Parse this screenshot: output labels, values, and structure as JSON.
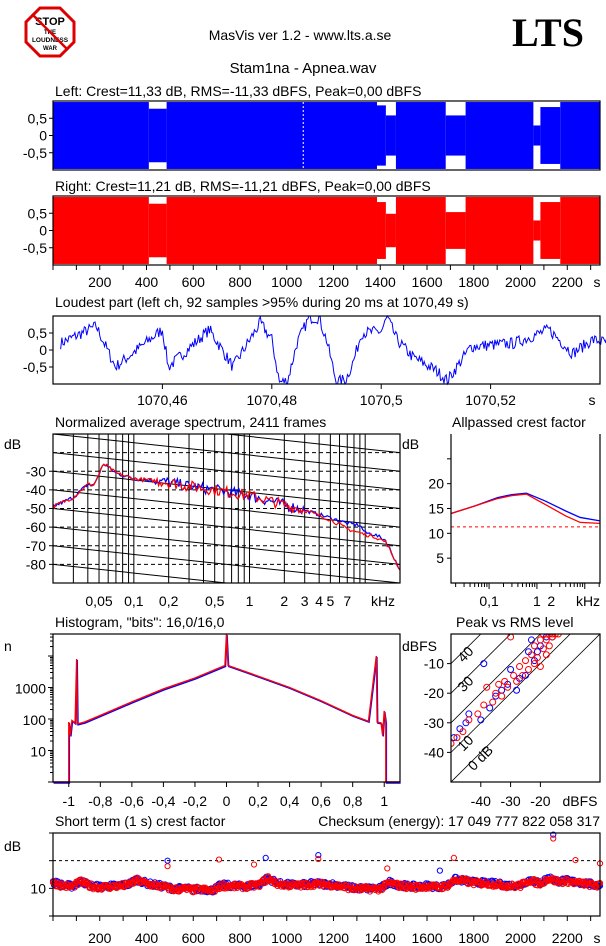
{
  "header": {
    "logo_text": [
      "STOP",
      "THE",
      "LOUDNESS",
      "WAR"
    ],
    "app_title": "MasVis ver 1.2 - www.lts.a.se",
    "brand": "LTS",
    "file_title": "Stam1na - Apnea.wav"
  },
  "colors": {
    "left": "#0000ff",
    "right": "#ff0000",
    "background": "#ffffff"
  },
  "waveform": {
    "left_title": "Left: Crest=11,33 dB, RMS=-11,33 dBFS, Peak=0,00 dBFS",
    "right_title": "Right: Crest=11,21 dB, RMS=-11,21 dBFS, Peak=0,00 dBFS",
    "y_ticks": [
      {
        "v": 0.5,
        "label": "0,5"
      },
      {
        "v": 0,
        "label": "0"
      },
      {
        "v": -0.5,
        "label": "-0,5"
      }
    ],
    "x_ticks": [
      {
        "v": 200,
        "label": "200"
      },
      {
        "v": 400,
        "label": "400"
      },
      {
        "v": 600,
        "label": "600"
      },
      {
        "v": 800,
        "label": "800"
      },
      {
        "v": 1000,
        "label": "1000"
      },
      {
        "v": 1200,
        "label": "1200"
      },
      {
        "v": 1400,
        "label": "1400"
      },
      {
        "v": 1600,
        "label": "1600"
      },
      {
        "v": 1800,
        "label": "1800"
      },
      {
        "v": 2000,
        "label": "2000"
      },
      {
        "v": 2200,
        "label": "2200"
      }
    ],
    "x_unit": "s",
    "xlim": [
      0,
      2340
    ],
    "loudest_marker_s": 1070.49,
    "left_envelope": [
      [
        0,
        410,
        1
      ],
      [
        410,
        486,
        0.8
      ],
      [
        486,
        1386,
        1
      ],
      [
        1386,
        1424,
        0.9
      ],
      [
        1424,
        1467,
        0.6
      ],
      [
        1467,
        1680,
        1
      ],
      [
        1680,
        1765,
        0.6
      ],
      [
        1765,
        2055,
        1
      ],
      [
        2055,
        2085,
        0.3
      ],
      [
        2085,
        2170,
        0.85
      ],
      [
        2170,
        2340,
        1
      ]
    ],
    "right_envelope": [
      [
        0,
        410,
        1
      ],
      [
        410,
        486,
        0.8
      ],
      [
        486,
        1386,
        1
      ],
      [
        1386,
        1424,
        0.85
      ],
      [
        1424,
        1467,
        0.5
      ],
      [
        1467,
        1680,
        1
      ],
      [
        1680,
        1765,
        0.55
      ],
      [
        1765,
        2055,
        1
      ],
      [
        2055,
        2085,
        0.3
      ],
      [
        2085,
        2170,
        0.85
      ],
      [
        2170,
        2340,
        1
      ]
    ]
  },
  "loudest": {
    "title": "Loudest part (left  ch, 92 samples >95% during 20 ms at 1070,49 s)",
    "xlim": [
      1070.44,
      1070.54
    ],
    "x_ticks": [
      {
        "v": 1070.46,
        "label": "1070,46"
      },
      {
        "v": 1070.48,
        "label": "1070,48"
      },
      {
        "v": 1070.5,
        "label": "1070,5"
      },
      {
        "v": 1070.52,
        "label": "1070,52"
      }
    ],
    "x_unit": "s",
    "points": [
      [
        1070.4414,
        0.2
      ],
      [
        1070.4479,
        0.7
      ],
      [
        1070.4514,
        -0.5
      ],
      [
        1070.46,
        0.6
      ],
      [
        1070.4611,
        -0.5
      ],
      [
        1070.4686,
        0.6
      ],
      [
        1070.4729,
        -0.5
      ],
      [
        1070.4779,
        0.8
      ],
      [
        1070.48,
        0.3
      ],
      [
        1070.4814,
        -0.95
      ],
      [
        1070.4829,
        -0.9
      ],
      [
        1070.4846,
        0.2
      ],
      [
        1070.4868,
        0.95
      ],
      [
        1070.4886,
        0.95
      ],
      [
        1070.49,
        0.3
      ],
      [
        1070.4918,
        -0.95
      ],
      [
        1070.4936,
        -0.85
      ],
      [
        1070.495,
        -0.3
      ],
      [
        1070.4964,
        0.5
      ],
      [
        1070.5,
        0.55
      ],
      [
        1070.5011,
        0.95
      ],
      [
        1070.5029,
        0.3
      ],
      [
        1070.5057,
        -0.2
      ],
      [
        1070.51,
        -0.6
      ],
      [
        1070.5121,
        -0.9
      ],
      [
        1070.5164,
        0.1
      ],
      [
        1070.5243,
        0.2
      ],
      [
        1070.5307,
        0.6
      ],
      [
        1070.535,
        -0.1
      ],
      [
        1070.5386,
        0.3
      ],
      [
        1070.5421,
        0.2
      ]
    ]
  },
  "spectrum": {
    "title": "Normalized average spectrum, 2411 frames",
    "y_unit": "dB",
    "ylim": [
      -90,
      -10
    ],
    "xlim_khz": [
      0.02,
      20
    ],
    "y_ticks": [
      {
        "v": -30,
        "label": "-30"
      },
      {
        "v": -40,
        "label": "-40"
      },
      {
        "v": -50,
        "label": "-50"
      },
      {
        "v": -60,
        "label": "-60"
      },
      {
        "v": -70,
        "label": "-70"
      },
      {
        "v": -80,
        "label": "-80"
      }
    ],
    "x_ticks": [
      {
        "v": 0.05,
        "label": "0,05"
      },
      {
        "v": 0.1,
        "label": "0,1"
      },
      {
        "v": 0.2,
        "label": "0,2"
      },
      {
        "v": 0.5,
        "label": "0,5"
      },
      {
        "v": 1,
        "label": "1"
      },
      {
        "v": 2,
        "label": "2"
      },
      {
        "v": 3,
        "label": "3"
      },
      {
        "v": 4,
        "label": "4"
      },
      {
        "v": 5,
        "label": "5"
      },
      {
        "v": 7,
        "label": "7"
      }
    ],
    "x_unit": "kHz",
    "left": [
      [
        0.02,
        -49
      ],
      [
        0.03,
        -44
      ],
      [
        0.04,
        -37
      ],
      [
        0.045,
        -37.5
      ],
      [
        0.055,
        -26
      ],
      [
        0.07,
        -31
      ],
      [
        0.1,
        -34
      ],
      [
        0.15,
        -35
      ],
      [
        0.2,
        -36
      ],
      [
        0.3,
        -38
      ],
      [
        0.5,
        -40
      ],
      [
        1,
        -43
      ],
      [
        2,
        -48
      ],
      [
        3,
        -51
      ],
      [
        5,
        -55
      ],
      [
        7,
        -58
      ],
      [
        9,
        -59
      ],
      [
        10,
        -63
      ],
      [
        12,
        -64
      ],
      [
        15,
        -67
      ],
      [
        20,
        -83
      ]
    ],
    "right": [
      [
        0.02,
        -49
      ],
      [
        0.03,
        -44
      ],
      [
        0.04,
        -37
      ],
      [
        0.045,
        -37.5
      ],
      [
        0.055,
        -26
      ],
      [
        0.07,
        -31
      ],
      [
        0.1,
        -34
      ],
      [
        0.15,
        -35
      ],
      [
        0.2,
        -36
      ],
      [
        0.3,
        -38
      ],
      [
        0.5,
        -40
      ],
      [
        1,
        -43
      ],
      [
        2,
        -48
      ],
      [
        3,
        -51
      ],
      [
        5,
        -56
      ],
      [
        7,
        -61
      ],
      [
        10,
        -64
      ],
      [
        12,
        -65
      ],
      [
        15,
        -68
      ],
      [
        20,
        -83
      ]
    ]
  },
  "allpass": {
    "title": "Allpassed crest factor",
    "y_unit": "dB",
    "ylim": [
      0,
      30
    ],
    "xlim_khz": [
      0.016,
      20.8
    ],
    "y_ticks": [
      {
        "v": 20,
        "label": "20"
      },
      {
        "v": 15,
        "label": "15"
      },
      {
        "v": 10,
        "label": "10"
      },
      {
        "v": 5,
        "label": "5"
      }
    ],
    "x_ticks": [
      {
        "v": 0.1,
        "label": "0,1"
      },
      {
        "v": 1,
        "label": "1"
      },
      {
        "v": 2,
        "label": "2"
      }
    ],
    "x_unit": "kHz",
    "reference_db": 11.3,
    "left": [
      [
        0.016,
        14
      ],
      [
        0.05,
        15.5
      ],
      [
        0.15,
        17.2
      ],
      [
        0.3,
        17.8
      ],
      [
        0.6,
        18.1
      ],
      [
        1.5,
        16.5
      ],
      [
        4,
        14.5
      ],
      [
        8,
        13.2
      ],
      [
        20.8,
        12.5
      ]
    ],
    "right": [
      [
        0.016,
        14
      ],
      [
        0.05,
        15.5
      ],
      [
        0.15,
        17
      ],
      [
        0.3,
        17.6
      ],
      [
        0.6,
        17.9
      ],
      [
        1.5,
        15.8
      ],
      [
        4,
        13.5
      ],
      [
        8,
        12.2
      ],
      [
        20.8,
        12
      ]
    ]
  },
  "histogram": {
    "title": "Histogram, \"bits\": 16,0/16,0",
    "y_unit": "n",
    "ylim": [
      1,
      50000
    ],
    "xlim": [
      -1.1,
      1.1
    ],
    "y_ticks": [
      {
        "v": 1000,
        "label": "1000"
      },
      {
        "v": 100,
        "label": "100"
      },
      {
        "v": 10,
        "label": "10"
      }
    ],
    "x_ticks": [
      {
        "v": -1,
        "label": "-1"
      },
      {
        "v": -0.8,
        "label": "-0,8"
      },
      {
        "v": -0.6,
        "label": "-0,6"
      },
      {
        "v": -0.4,
        "label": "-0,4"
      },
      {
        "v": -0.2,
        "label": "-0,2"
      },
      {
        "v": 0,
        "label": "0"
      },
      {
        "v": 0.2,
        "label": "0,2"
      },
      {
        "v": 0.4,
        "label": "0,4"
      },
      {
        "v": 0.6,
        "label": "0,6"
      },
      {
        "v": 0.8,
        "label": "0,8"
      },
      {
        "v": 1,
        "label": "1"
      }
    ],
    "curve": [
      [
        -1.1,
        1
      ],
      [
        -1,
        1
      ],
      [
        -1,
        80
      ],
      [
        -0.99,
        30
      ],
      [
        -0.98,
        90
      ],
      [
        -0.96,
        75
      ],
      [
        -0.95,
        8000
      ],
      [
        -0.945,
        70
      ],
      [
        -0.9,
        80
      ],
      [
        -0.8,
        130
      ],
      [
        -0.6,
        350
      ],
      [
        -0.4,
        900
      ],
      [
        -0.2,
        2000
      ],
      [
        -0.01,
        5000
      ],
      [
        0,
        50000
      ],
      [
        0.01,
        5000
      ],
      [
        0.2,
        2300
      ],
      [
        0.4,
        1000
      ],
      [
        0.6,
        380
      ],
      [
        0.8,
        130
      ],
      [
        0.9,
        85
      ],
      [
        0.95,
        10000
      ],
      [
        0.955,
        80
      ],
      [
        0.98,
        75
      ],
      [
        0.99,
        30
      ],
      [
        1,
        180
      ],
      [
        1.01,
        80
      ],
      [
        1.01,
        1
      ],
      [
        1.1,
        1
      ]
    ]
  },
  "peak_rms": {
    "title": "Peak vs RMS level",
    "unit": "dBFS",
    "lim": [
      -50,
      0
    ],
    "y_ticks": [
      {
        "v": -10,
        "label": "-10"
      },
      {
        "v": -20,
        "label": "-20"
      },
      {
        "v": -30,
        "label": "-30"
      },
      {
        "v": -40,
        "label": "-40"
      }
    ],
    "x_ticks": [
      {
        "v": -40,
        "label": "-40"
      },
      {
        "v": -30,
        "label": "-30"
      },
      {
        "v": -20,
        "label": "-20"
      }
    ],
    "crest_lines": [
      {
        "v": 40,
        "label": "40"
      },
      {
        "v": 30,
        "label": "30"
      },
      {
        "v": 20,
        "label": ""
      },
      {
        "v": 10,
        "label": "10"
      },
      {
        "v": 0,
        "label": "0 dB"
      }
    ],
    "left": [
      [
        -49,
        -35
      ],
      [
        -47,
        -32
      ],
      [
        -45,
        -30
      ],
      [
        -44,
        -27
      ],
      [
        -40,
        -29
      ],
      [
        -39,
        -10
      ],
      [
        -37,
        -25
      ],
      [
        -35,
        -21
      ],
      [
        -33,
        -19
      ],
      [
        -31,
        -17
      ],
      [
        -30,
        -12
      ],
      [
        -28,
        -19
      ],
      [
        -27,
        -15
      ],
      [
        -25,
        -14
      ],
      [
        -24,
        -6
      ],
      [
        -23,
        -2
      ],
      [
        -22,
        -9
      ],
      [
        -21,
        -6
      ],
      [
        -20,
        -4
      ],
      [
        -18,
        -1
      ],
      [
        -16,
        -1
      ]
    ],
    "right": [
      [
        -50,
        -37
      ],
      [
        -48,
        -35
      ],
      [
        -46,
        -33
      ],
      [
        -44,
        -29
      ],
      [
        -41,
        -27
      ],
      [
        -39,
        -24
      ],
      [
        -38,
        -18
      ],
      [
        -36,
        -23
      ],
      [
        -35,
        -20
      ],
      [
        -34,
        -17
      ],
      [
        -33,
        -21
      ],
      [
        -32,
        -16
      ],
      [
        -31,
        -18
      ],
      [
        -30,
        -1
      ],
      [
        -29,
        -14
      ],
      [
        -28,
        -16
      ],
      [
        -27,
        -11
      ],
      [
        -26,
        -14
      ],
      [
        -25,
        -9
      ],
      [
        -24,
        -12
      ],
      [
        -23,
        -7
      ],
      [
        -22,
        -10
      ],
      [
        -22,
        -4
      ],
      [
        -21,
        -8
      ],
      [
        -20,
        -2
      ],
      [
        -20,
        -11
      ],
      [
        -19,
        -5
      ],
      [
        -19,
        0
      ],
      [
        -18,
        -7
      ],
      [
        -18,
        -2
      ],
      [
        -17,
        -4
      ],
      [
        -17,
        0
      ],
      [
        -16,
        -1
      ],
      [
        -16,
        0
      ],
      [
        -15,
        0
      ],
      [
        -14,
        0
      ]
    ]
  },
  "short_term": {
    "title": "Short term (1 s) crest factor",
    "checksum": "Checksum (energy):  17 049 777 822 058 317",
    "y_unit": "dB",
    "ylim": [
      5,
      20
    ],
    "reference_db": 15,
    "y_ticks": [
      {
        "v": 10,
        "label": "10"
      }
    ],
    "x_ticks": [
      {
        "v": 200,
        "label": "200"
      },
      {
        "v": 400,
        "label": "400"
      },
      {
        "v": 600,
        "label": "600"
      },
      {
        "v": 800,
        "label": "800"
      },
      {
        "v": 1000,
        "label": "1000"
      },
      {
        "v": 1200,
        "label": "1200"
      },
      {
        "v": 1400,
        "label": "1400"
      },
      {
        "v": 1600,
        "label": "1600"
      },
      {
        "v": 1800,
        "label": "1800"
      },
      {
        "v": 2000,
        "label": "2000"
      },
      {
        "v": 2200,
        "label": "2200"
      }
    ],
    "x_unit": "s",
    "xlim": [
      0,
      2340
    ],
    "step_s": 40,
    "values": [
      11,
      10.5,
      10.3,
      11.2,
      10.4,
      10.2,
      10.3,
      10.4,
      10.6,
      11.5,
      10.8,
      10.5,
      10.2,
      9.8,
      9.9,
      9.7,
      9.8,
      9.5,
      10.5,
      10.4,
      10.3,
      10.4,
      10.6,
      11.8,
      10.8,
      10.6,
      10.5,
      10.6,
      10.8,
      10.7,
      10.6,
      10.3,
      10.0,
      9.9,
      9.9,
      9.9,
      11,
      10.5,
      10.3,
      10.2,
      10.4,
      10.2,
      10.3,
      11.5,
      11.3,
      11.0,
      10.9,
      10.8,
      10.6,
      10.4,
      10.5,
      11.5,
      10.8,
      11.8,
      11.2,
      11.3,
      11.0,
      10.8,
      10.5
    ],
    "right_outliers": [
      [
        490,
        14
      ],
      [
        710,
        15.2
      ],
      [
        860,
        14.3
      ],
      [
        1135,
        15.3
      ],
      [
        1430,
        13.6
      ],
      [
        1715,
        15.5
      ],
      [
        2140,
        19
      ],
      [
        2235,
        15.1
      ],
      [
        2340,
        14.5
      ]
    ],
    "left_outliers": [
      [
        490,
        15
      ],
      [
        910,
        15.5
      ],
      [
        1135,
        16
      ],
      [
        1655,
        13.2
      ],
      [
        2140,
        19.7
      ]
    ]
  }
}
